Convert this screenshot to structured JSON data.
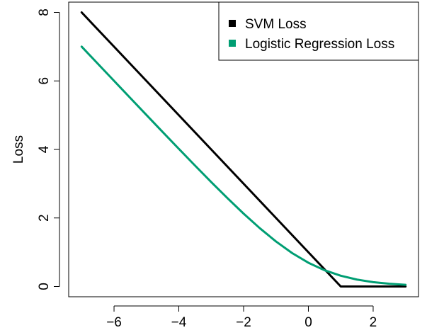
{
  "chart_data": {
    "type": "line",
    "title": "",
    "xlabel": "",
    "ylabel": "Loss",
    "xlim": [
      -7.4,
      3.4
    ],
    "ylim": [
      -0.3,
      8.3
    ],
    "x_ticks": [
      -6,
      -4,
      -2,
      0,
      2
    ],
    "x_tick_labels": [
      "−6",
      "−4",
      "−2",
      "0",
      "2"
    ],
    "y_ticks": [
      0,
      2,
      4,
      6,
      8
    ],
    "y_tick_labels": [
      "0",
      "2",
      "4",
      "6",
      "8"
    ],
    "grid": false,
    "legend_position": "top-right",
    "series": [
      {
        "name": "SVM Loss",
        "color": "#000000",
        "x": [
          -7,
          -6,
          -5,
          -4,
          -3,
          -2,
          -1,
          0,
          1,
          2,
          3
        ],
        "y": [
          8,
          7,
          6,
          5,
          4,
          3,
          2,
          1,
          0,
          0,
          0
        ]
      },
      {
        "name": "Logistic Regression Loss",
        "color": "#009E73",
        "x": [
          -7,
          -6.5,
          -6,
          -5.5,
          -5,
          -4.5,
          -4,
          -3.5,
          -3,
          -2.5,
          -2,
          -1.5,
          -1,
          -0.5,
          0,
          0.5,
          1,
          1.5,
          2,
          2.5,
          3
        ],
        "y": [
          7.0009,
          6.5015,
          6.0025,
          5.5041,
          5.0067,
          4.5111,
          4.0181,
          3.5297,
          3.0486,
          2.5789,
          2.1269,
          1.7014,
          1.3133,
          0.9741,
          0.6931,
          0.4741,
          0.3133,
          0.2014,
          0.1269,
          0.0789,
          0.0486
        ]
      }
    ]
  }
}
